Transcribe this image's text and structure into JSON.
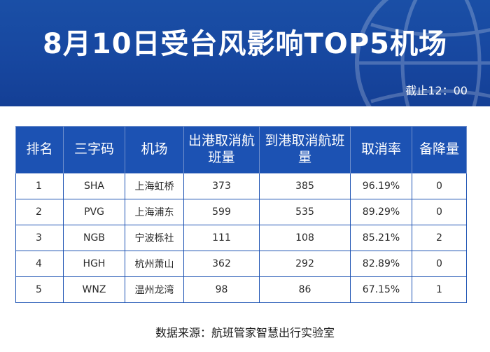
{
  "header": {
    "title": "8月10日受台风影响TOP5机场",
    "cutoff": "截止12：00"
  },
  "table": {
    "columns": [
      "排名",
      "三字码",
      "机场",
      "出港取消航班量",
      "到港取消航班量",
      "取消率",
      "备降量"
    ],
    "rows": [
      [
        "1",
        "SHA",
        "上海虹桥",
        "373",
        "385",
        "96.19%",
        "0"
      ],
      [
        "2",
        "PVG",
        "上海浦东",
        "599",
        "535",
        "89.29%",
        "0"
      ],
      [
        "3",
        "NGB",
        "宁波栎社",
        "111",
        "108",
        "85.21%",
        "2"
      ],
      [
        "4",
        "HGH",
        "杭州萧山",
        "362",
        "292",
        "82.89%",
        "0"
      ],
      [
        "5",
        "WNZ",
        "温州龙湾",
        "98",
        "86",
        "67.15%",
        "1"
      ]
    ]
  },
  "footer": {
    "source": "数据来源：航班管家智慧出行实验室"
  },
  "colors": {
    "banner": "#1747a0",
    "header_cells": "#1c52b3",
    "grid_lines": "#1c52b3"
  }
}
